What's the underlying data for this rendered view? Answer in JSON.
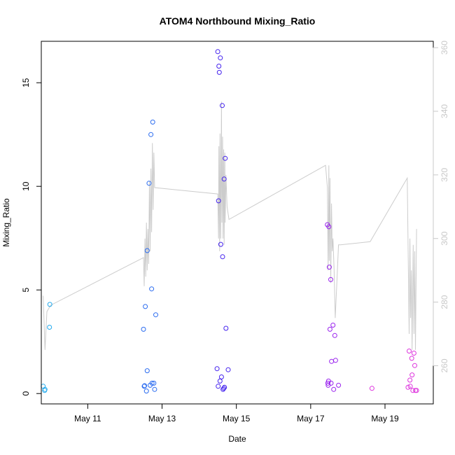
{
  "chart_data": {
    "type": "scatter",
    "title": "ATOM4 Northbound Mixing_Ratio",
    "xlabel": "Date",
    "ylabel": "Mixing_Ratio",
    "x_unit": "days (May 2018)",
    "xlim": [
      9.75,
      20.3
    ],
    "ylim": [
      -0.5,
      17
    ],
    "x_ticks": [
      {
        "value": 11,
        "label": "May 11"
      },
      {
        "value": 13,
        "label": "May 13"
      },
      {
        "value": 15,
        "label": "May 15"
      },
      {
        "value": 17,
        "label": "May 17"
      },
      {
        "value": 19,
        "label": "May 19"
      }
    ],
    "y_ticks": [
      {
        "value": 0,
        "label": "0"
      },
      {
        "value": 5,
        "label": "5"
      },
      {
        "value": 10,
        "label": "10"
      },
      {
        "value": 15,
        "label": "15"
      }
    ],
    "y2_lim": [
      248,
      362
    ],
    "y2_ticks": [
      {
        "value": 260,
        "label": "260"
      },
      {
        "value": 280,
        "label": "280"
      },
      {
        "value": 300,
        "label": "300"
      },
      {
        "value": 320,
        "label": "320"
      },
      {
        "value": 340,
        "label": "340"
      },
      {
        "value": 360,
        "label": "360"
      }
    ],
    "grid": false,
    "points": [
      {
        "x": 9.8,
        "y": 0.35,
        "color": "#22aaee"
      },
      {
        "x": 9.84,
        "y": 0.15,
        "color": "#22aaee"
      },
      {
        "x": 9.85,
        "y": 0.2,
        "color": "#22aaee"
      },
      {
        "x": 9.97,
        "y": 3.2,
        "color": "#22aaee"
      },
      {
        "x": 9.98,
        "y": 4.3,
        "color": "#22aaee"
      },
      {
        "x": 12.5,
        "y": 3.1,
        "color": "#2b6cf0"
      },
      {
        "x": 12.52,
        "y": 0.35,
        "color": "#2b6cf0"
      },
      {
        "x": 12.53,
        "y": 0.38,
        "color": "#2b6cf0"
      },
      {
        "x": 12.55,
        "y": 4.2,
        "color": "#2b6cf0"
      },
      {
        "x": 12.6,
        "y": 1.1,
        "color": "#2b6cf0"
      },
      {
        "x": 12.6,
        "y": 6.9,
        "color": "#2b6cf0"
      },
      {
        "x": 12.58,
        "y": 0.12,
        "color": "#2b6cf0"
      },
      {
        "x": 12.65,
        "y": 10.15,
        "color": "#2b6cf0"
      },
      {
        "x": 12.68,
        "y": 0.4,
        "color": "#2b6cf0"
      },
      {
        "x": 12.7,
        "y": 12.5,
        "color": "#2b6cf0"
      },
      {
        "x": 12.72,
        "y": 5.05,
        "color": "#2b6cf0"
      },
      {
        "x": 12.73,
        "y": 0.5,
        "color": "#2b6cf0"
      },
      {
        "x": 12.75,
        "y": 13.1,
        "color": "#2b6cf0"
      },
      {
        "x": 12.78,
        "y": 0.5,
        "color": "#2b6cf0"
      },
      {
        "x": 12.8,
        "y": 0.2,
        "color": "#2b6cf0"
      },
      {
        "x": 12.83,
        "y": 3.8,
        "color": "#2b6cf0"
      },
      {
        "x": 14.48,
        "y": 1.2,
        "color": "#4422ee"
      },
      {
        "x": 14.5,
        "y": 16.5,
        "color": "#4422ee"
      },
      {
        "x": 14.51,
        "y": 0.35,
        "color": "#4422ee"
      },
      {
        "x": 14.52,
        "y": 9.3,
        "color": "#4422ee"
      },
      {
        "x": 14.53,
        "y": 15.8,
        "color": "#4422ee"
      },
      {
        "x": 14.54,
        "y": 15.5,
        "color": "#4422ee"
      },
      {
        "x": 14.56,
        "y": 0.6,
        "color": "#4422ee"
      },
      {
        "x": 14.57,
        "y": 16.2,
        "color": "#4422ee"
      },
      {
        "x": 14.58,
        "y": 7.2,
        "color": "#4422ee"
      },
      {
        "x": 14.6,
        "y": 0.8,
        "color": "#4422ee"
      },
      {
        "x": 14.62,
        "y": 13.9,
        "color": "#4422ee"
      },
      {
        "x": 14.63,
        "y": 6.6,
        "color": "#4422ee"
      },
      {
        "x": 14.64,
        "y": 0.2,
        "color": "#4422ee"
      },
      {
        "x": 14.66,
        "y": 0.25,
        "color": "#4422ee"
      },
      {
        "x": 14.67,
        "y": 10.35,
        "color": "#4422ee"
      },
      {
        "x": 14.68,
        "y": 0.3,
        "color": "#4422ee"
      },
      {
        "x": 14.7,
        "y": 11.35,
        "color": "#4422ee"
      },
      {
        "x": 14.72,
        "y": 3.15,
        "color": "#4422ee"
      },
      {
        "x": 14.78,
        "y": 1.15,
        "color": "#4422ee"
      },
      {
        "x": 17.45,
        "y": 8.15,
        "color": "#9922ee"
      },
      {
        "x": 17.46,
        "y": 0.5,
        "color": "#9922ee"
      },
      {
        "x": 17.47,
        "y": 0.4,
        "color": "#9922ee"
      },
      {
        "x": 17.48,
        "y": 0.6,
        "color": "#9922ee"
      },
      {
        "x": 17.49,
        "y": 8.05,
        "color": "#9922ee"
      },
      {
        "x": 17.5,
        "y": 6.1,
        "color": "#9922ee"
      },
      {
        "x": 17.52,
        "y": 3.1,
        "color": "#9922ee"
      },
      {
        "x": 17.54,
        "y": 5.5,
        "color": "#9922ee"
      },
      {
        "x": 17.55,
        "y": 0.5,
        "color": "#9922ee"
      },
      {
        "x": 17.56,
        "y": 1.55,
        "color": "#9922ee"
      },
      {
        "x": 17.6,
        "y": 3.3,
        "color": "#9922ee"
      },
      {
        "x": 17.62,
        "y": 0.2,
        "color": "#9922ee"
      },
      {
        "x": 17.65,
        "y": 2.8,
        "color": "#9922ee"
      },
      {
        "x": 17.67,
        "y": 1.6,
        "color": "#9922ee"
      },
      {
        "x": 17.75,
        "y": 0.4,
        "color": "#9922ee"
      },
      {
        "x": 18.65,
        "y": 0.25,
        "color": "#dd33dd"
      },
      {
        "x": 19.62,
        "y": 0.3,
        "color": "#dd33dd"
      },
      {
        "x": 19.65,
        "y": 2.05,
        "color": "#dd33dd"
      },
      {
        "x": 19.67,
        "y": 0.65,
        "color": "#dd33dd"
      },
      {
        "x": 19.68,
        "y": 0.35,
        "color": "#dd33dd"
      },
      {
        "x": 19.72,
        "y": 1.7,
        "color": "#dd33dd"
      },
      {
        "x": 19.73,
        "y": 0.9,
        "color": "#dd33dd"
      },
      {
        "x": 19.75,
        "y": 0.15,
        "color": "#dd33dd"
      },
      {
        "x": 19.78,
        "y": 1.95,
        "color": "#dd33dd"
      },
      {
        "x": 19.8,
        "y": 1.35,
        "color": "#dd33dd"
      },
      {
        "x": 19.82,
        "y": 0.15,
        "color": "#dd33dd"
      },
      {
        "x": 19.85,
        "y": 0.15,
        "color": "#dd33dd"
      }
    ],
    "line_series": {
      "color": "#cccccc",
      "axis": "right",
      "points": [
        [
          9.8,
          282
        ],
        [
          9.85,
          265
        ],
        [
          9.9,
          277
        ],
        [
          10.0,
          279
        ],
        [
          12.5,
          294
        ],
        [
          12.52,
          285
        ],
        [
          12.54,
          300
        ],
        [
          12.56,
          288
        ],
        [
          12.58,
          305
        ],
        [
          12.6,
          290
        ],
        [
          12.62,
          303
        ],
        [
          12.64,
          292
        ],
        [
          12.66,
          318
        ],
        [
          12.68,
          296
        ],
        [
          12.7,
          322
        ],
        [
          12.72,
          302
        ],
        [
          12.74,
          330
        ],
        [
          12.76,
          309
        ],
        [
          12.78,
          327
        ],
        [
          12.8,
          316
        ],
        [
          14.5,
          314
        ],
        [
          14.52,
          300
        ],
        [
          14.53,
          329
        ],
        [
          14.55,
          296
        ],
        [
          14.56,
          333
        ],
        [
          14.58,
          300
        ],
        [
          14.6,
          343
        ],
        [
          14.61,
          305
        ],
        [
          14.63,
          332
        ],
        [
          14.64,
          300
        ],
        [
          14.66,
          328
        ],
        [
          14.67,
          298
        ],
        [
          14.69,
          327
        ],
        [
          14.7,
          305
        ],
        [
          14.72,
          320
        ],
        [
          14.75,
          310
        ],
        [
          14.8,
          306
        ],
        [
          17.4,
          323
        ],
        [
          17.45,
          316
        ],
        [
          17.47,
          290
        ],
        [
          17.49,
          323
        ],
        [
          17.5,
          293
        ],
        [
          17.52,
          319
        ],
        [
          17.54,
          286
        ],
        [
          17.56,
          311
        ],
        [
          17.58,
          296
        ],
        [
          17.6,
          300
        ],
        [
          17.63,
          290
        ],
        [
          17.66,
          275
        ],
        [
          17.7,
          285
        ],
        [
          17.75,
          298
        ],
        [
          17.8,
          298
        ],
        [
          18.6,
          299
        ],
        [
          19.6,
          319
        ],
        [
          19.63,
          290
        ],
        [
          19.65,
          270
        ],
        [
          19.67,
          300
        ],
        [
          19.69,
          275
        ],
        [
          19.71,
          290
        ],
        [
          19.73,
          265
        ],
        [
          19.76,
          298
        ],
        [
          19.78,
          270
        ],
        [
          19.8,
          296
        ],
        [
          19.82,
          265
        ],
        [
          19.85,
          303
        ]
      ]
    }
  }
}
